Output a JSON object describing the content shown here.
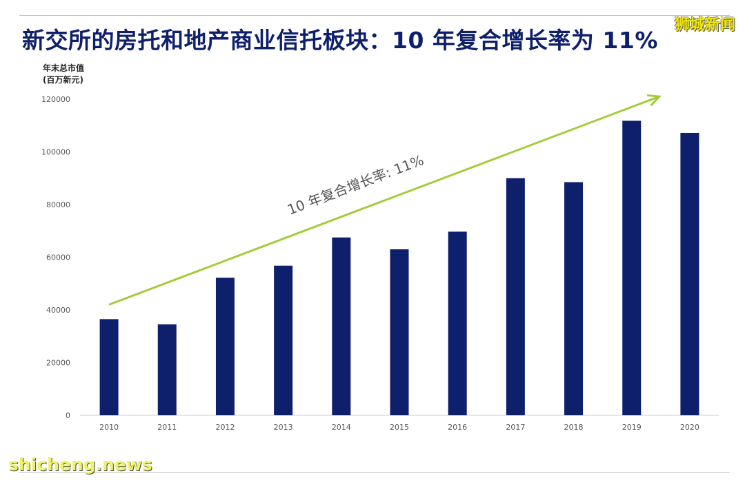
{
  "header": {
    "title": "新交所的房托和地产商业信托板块：10 年复合增长率为 11%",
    "ylabel_line1": "年末总市值",
    "ylabel_line2": "(百万新元)"
  },
  "watermarks": {
    "top_right": "狮城新闻",
    "bottom_left": "shicheng.news"
  },
  "colors": {
    "bar": "#0e1f6b",
    "arrow": "#a4cc3a",
    "title": "#0e1f6b"
  },
  "chart_data": {
    "type": "bar",
    "title": "新交所的房托和地产商业信托板块：10 年复合增长率为 11%",
    "ylabel": "年末总市值 (百万新元)",
    "xlabel": "",
    "categories": [
      "2010",
      "2011",
      "2012",
      "2013",
      "2014",
      "2015",
      "2016",
      "2017",
      "2018",
      "2019",
      "2020"
    ],
    "values": [
      36500,
      34500,
      52200,
      56800,
      67500,
      63000,
      69700,
      90000,
      88500,
      111800,
      107200
    ],
    "ylim": [
      0,
      120000
    ],
    "yticks": [
      0,
      20000,
      40000,
      60000,
      80000,
      100000,
      120000
    ],
    "ytick_labels": [
      "0",
      "20000",
      "40000",
      "60000",
      "80000",
      "100000",
      "120000"
    ],
    "grid": false,
    "annotation": {
      "text": "10 年复合增长率: 11%",
      "arrow_from": {
        "x": "2010",
        "y": 42000
      },
      "arrow_to": {
        "x": "2019",
        "y": 121000
      }
    }
  }
}
